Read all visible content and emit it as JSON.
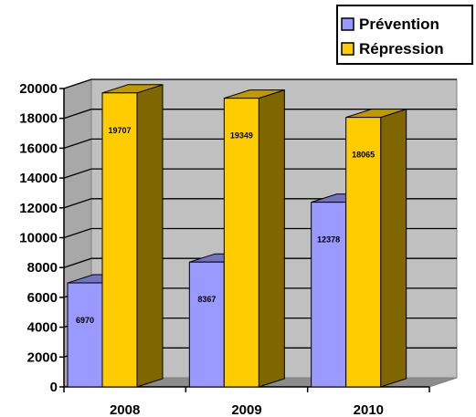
{
  "chart_data": {
    "type": "bar",
    "categories": [
      "2008",
      "2009",
      "2010"
    ],
    "series": [
      {
        "name": "Prévention",
        "values": [
          6970,
          8367,
          12378
        ],
        "color": "#9999ff"
      },
      {
        "name": "Répression",
        "values": [
          19707,
          19349,
          18065
        ],
        "color": "#ffcc00"
      }
    ],
    "ylim": [
      0,
      20000
    ],
    "yticks": [
      "0",
      "2000",
      "4000",
      "6000",
      "8000",
      "10000",
      "12000",
      "14000",
      "16000",
      "18000",
      "20000"
    ],
    "legend_position": "top-right",
    "grid": true,
    "wall_color": "#c0c0c0"
  }
}
